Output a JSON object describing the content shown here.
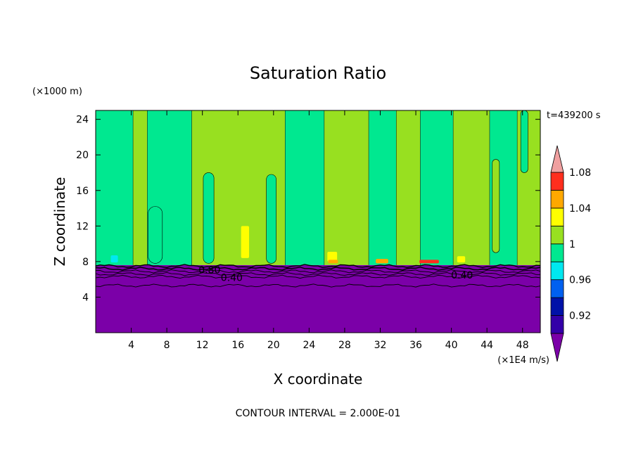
{
  "chart_data": {
    "type": "heatmap",
    "title": "Saturation Ratio",
    "xlabel": "X coordinate",
    "ylabel": "Z coordinate",
    "x_unit": "(×1E4 m/s)",
    "y_unit": "(×1000 m)",
    "time_label": "t=439200 s",
    "footer": "CONTOUR INTERVAL = 2.000E-01",
    "xlim": [
      0,
      50
    ],
    "ylim": [
      0,
      25
    ],
    "x_ticks": [
      4,
      8,
      12,
      16,
      20,
      24,
      28,
      32,
      36,
      40,
      44,
      48
    ],
    "y_ticks": [
      4,
      8,
      12,
      16,
      20,
      24
    ],
    "x_tick_labels": [
      "4",
      "8",
      "12",
      "16",
      "20",
      "24",
      "28",
      "32",
      "36",
      "40",
      "44",
      "48"
    ],
    "y_tick_labels": [
      "4",
      "8",
      "12",
      "16",
      "20",
      "24"
    ],
    "colorbar": {
      "tick_labels": [
        "0.92",
        "0.96",
        "1",
        "1.04",
        "1.08"
      ],
      "levels": [
        0.92,
        0.94,
        0.96,
        0.98,
        1.0,
        1.02,
        1.04,
        1.06,
        1.08
      ],
      "colors": [
        "#7B00A8",
        "#3300A8",
        "#0012A8",
        "#0060F0",
        "#00E8F0",
        "#00E890",
        "#98E020",
        "#FFFF00",
        "#FFA800",
        "#FF2E1E",
        "#F0A0A0"
      ]
    },
    "regions": {
      "surface_layer_top_z": 7.6,
      "surface_color": "#7B00A8",
      "contour_labels": [
        {
          "text": "0.80",
          "x": 12.8,
          "z": 7.1
        },
        {
          "text": "0.40",
          "x": 15.3,
          "z": 6.2
        },
        {
          "text": "0.40",
          "x": 41.2,
          "z": 6.5
        }
      ],
      "band_boundaries_x": [
        0,
        4.2,
        5.8,
        10.8,
        21.3,
        25.7,
        30.7,
        33.8,
        36.5,
        40.2,
        44.3,
        47.4,
        50
      ],
      "band_colors": [
        "#00E890",
        "#98E020",
        "#00E890",
        "#98E020",
        "#00E890",
        "#98E020",
        "#00E890",
        "#98E020",
        "#00E890",
        "#98E020",
        "#00E890",
        "#98E020"
      ],
      "pockets": [
        {
          "x0": 5.9,
          "x1": 7.5,
          "z0": 7.8,
          "z1": 14.2,
          "color": "#00E890"
        },
        {
          "x0": 12.1,
          "x1": 13.3,
          "z0": 7.8,
          "z1": 18.0,
          "color": "#00E890"
        },
        {
          "x0": 19.2,
          "x1": 20.3,
          "z0": 7.8,
          "z1": 17.8,
          "color": "#00E890"
        },
        {
          "x0": 44.6,
          "x1": 45.4,
          "z0": 9.0,
          "z1": 19.5,
          "color": "#98E020"
        },
        {
          "x0": 47.8,
          "x1": 48.6,
          "z0": 18.0,
          "z1": 25.0,
          "color": "#00E890"
        }
      ],
      "hotspots": [
        {
          "x": 16.8,
          "z": 8.4,
          "w": 0.9,
          "h": 3.6,
          "color": "#FFFF00"
        },
        {
          "x": 26.6,
          "z": 8.0,
          "w": 1.1,
          "h": 1.1,
          "color": "#FFFF00"
        },
        {
          "x": 26.7,
          "z": 7.8,
          "w": 1.1,
          "h": 0.4,
          "color": "#FFA800"
        },
        {
          "x": 32.2,
          "z": 7.8,
          "w": 1.4,
          "h": 0.5,
          "color": "#FFA800"
        },
        {
          "x": 37.5,
          "z": 7.8,
          "w": 2.2,
          "h": 0.4,
          "color": "#FF2E1E"
        },
        {
          "x": 41.1,
          "z": 7.9,
          "w": 0.9,
          "h": 0.7,
          "color": "#FFFF00"
        },
        {
          "x": 2.1,
          "z": 7.9,
          "w": 0.8,
          "h": 0.8,
          "color": "#00E8F0"
        }
      ]
    }
  }
}
